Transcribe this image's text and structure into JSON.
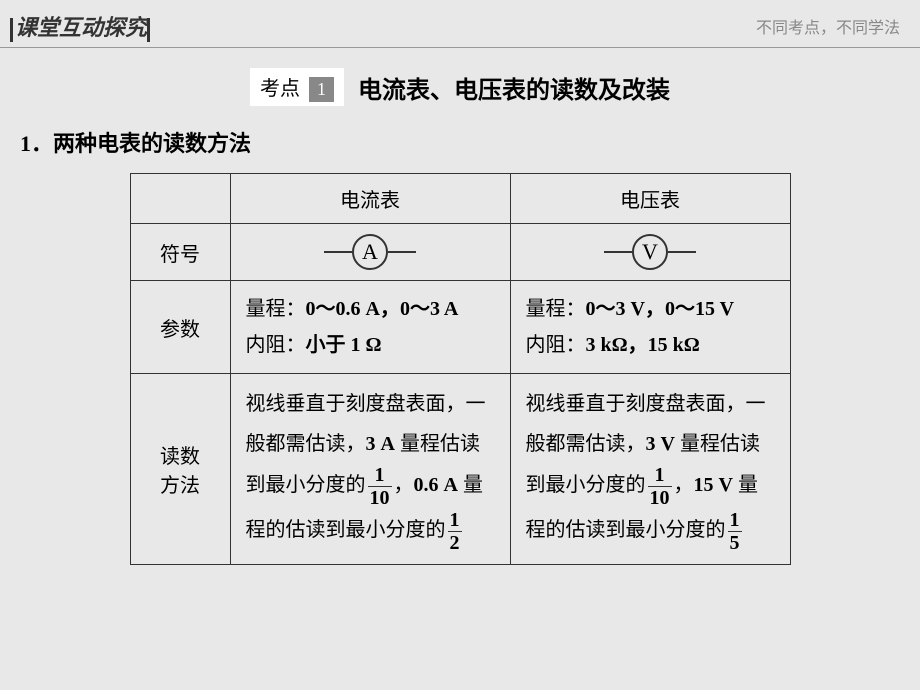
{
  "header": {
    "left_bar": "课堂互动探究",
    "right_text": "不同考点，不同学法"
  },
  "title": {
    "kaodian_label": "考点",
    "kaodian_num": "1",
    "main_title": "电流表、电压表的读数及改装"
  },
  "section": {
    "num": "1．",
    "text": "两种电表的读数方法"
  },
  "table": {
    "headers": {
      "ammeter": "电流表",
      "voltmeter": "电压表"
    },
    "row_labels": {
      "symbol": "符号",
      "params": "参数",
      "method": "读数方法"
    },
    "symbols": {
      "ammeter": "A",
      "voltmeter": "V"
    },
    "params": {
      "ammeter_range_label": "量程：",
      "ammeter_range": "0～0.6 A，0～3 A",
      "ammeter_resistance_label": "内阻：",
      "ammeter_resistance": "小于 1 Ω",
      "voltmeter_range_label": "量程：",
      "voltmeter_range": "0～3 V，0～15 V",
      "voltmeter_resistance_label": "内阻：",
      "voltmeter_resistance": "3 kΩ，15 kΩ"
    },
    "method": {
      "ammeter_p1": "视线垂直于刻度盘表面，一般都需估读，",
      "ammeter_3a": "3 A",
      "ammeter_p2": "量程估读到最小分度的",
      "ammeter_frac1_num": "1",
      "ammeter_frac1_den": "10",
      "ammeter_comma": "，",
      "ammeter_06a": "0.6 A",
      "ammeter_p3": " 量程的估读到最小分度的",
      "ammeter_frac2_num": "1",
      "ammeter_frac2_den": "2",
      "voltmeter_p1": "视线垂直于刻度盘表面，一般都需估读，",
      "voltmeter_3v": "3 V",
      "voltmeter_p2": "量程估读到最小分度的",
      "voltmeter_frac1_num": "1",
      "voltmeter_frac1_den": "10",
      "voltmeter_comma": "，",
      "voltmeter_15v": "15 V",
      "voltmeter_p3": " 量程的估读到最小分度的",
      "voltmeter_frac2_num": "1",
      "voltmeter_frac2_den": "5"
    }
  }
}
